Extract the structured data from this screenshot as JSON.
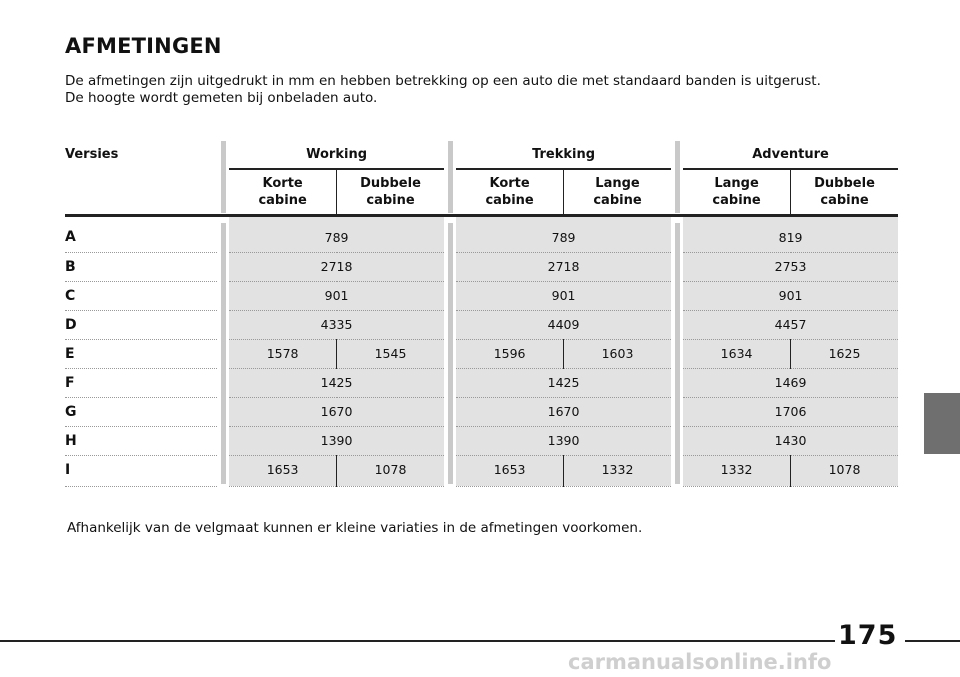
{
  "title": "AFMETINGEN",
  "intro": [
    "De afmetingen zijn uitgedrukt in mm en hebben betrekking op een auto die met standaard banden is uitgerust.",
    "De hoogte wordt gemeten bij onbeladen auto."
  ],
  "table": {
    "versies_label": "Versies",
    "groups": [
      "Working",
      "Trekking",
      "Adventure"
    ],
    "subheads": [
      [
        "Korte",
        "cabine"
      ],
      [
        "Dubbele",
        "cabine"
      ],
      [
        "Korte",
        "cabine"
      ],
      [
        "Lange",
        "cabine"
      ],
      [
        "Lange",
        "cabine"
      ],
      [
        "Dubbele",
        "cabine"
      ]
    ],
    "rows": [
      {
        "label": "A",
        "working": [
          "789"
        ],
        "trekking": [
          "789"
        ],
        "adventure": [
          "819"
        ]
      },
      {
        "label": "B",
        "working": [
          "2718"
        ],
        "trekking": [
          "2718"
        ],
        "adventure": [
          "2753"
        ]
      },
      {
        "label": "C",
        "working": [
          "901"
        ],
        "trekking": [
          "901"
        ],
        "adventure": [
          "901"
        ]
      },
      {
        "label": "D",
        "working": [
          "4335"
        ],
        "trekking": [
          "4409"
        ],
        "adventure": [
          "4457"
        ]
      },
      {
        "label": "E",
        "working": [
          "1578",
          "1545"
        ],
        "trekking": [
          "1596",
          "1603"
        ],
        "adventure": [
          "1634",
          "1625"
        ]
      },
      {
        "label": "F",
        "working": [
          "1425"
        ],
        "trekking": [
          "1425"
        ],
        "adventure": [
          "1469"
        ]
      },
      {
        "label": "G",
        "working": [
          "1670"
        ],
        "trekking": [
          "1670"
        ],
        "adventure": [
          "1706"
        ]
      },
      {
        "label": "H",
        "working": [
          "1390"
        ],
        "trekking": [
          "1390"
        ],
        "adventure": [
          "1430"
        ]
      },
      {
        "label": "I",
        "working": [
          "1653",
          "1078"
        ],
        "trekking": [
          "1653",
          "1332"
        ],
        "adventure": [
          "1332",
          "1078"
        ]
      }
    ]
  },
  "note": "Afhankelijk van de velgmaat kunnen er kleine variaties in de afmetingen voorkomen.",
  "page_number": "175",
  "watermark": "carmanualsonline.info",
  "colors": {
    "cell_bg": "#e2e2e2",
    "side_tab": "#6f6f6f",
    "gutter": "#c9c9c9"
  }
}
